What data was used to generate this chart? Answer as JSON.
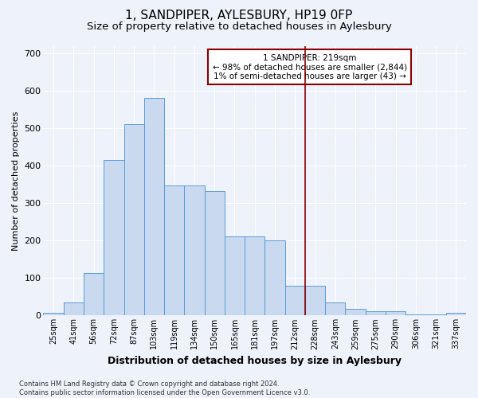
{
  "title": "1, SANDPIPER, AYLESBURY, HP19 0FP",
  "subtitle": "Size of property relative to detached houses in Aylesbury",
  "xlabel": "Distribution of detached houses by size in Aylesbury",
  "ylabel": "Number of detached properties",
  "categories": [
    "25sqm",
    "41sqm",
    "56sqm",
    "72sqm",
    "87sqm",
    "103sqm",
    "119sqm",
    "134sqm",
    "150sqm",
    "165sqm",
    "181sqm",
    "197sqm",
    "212sqm",
    "228sqm",
    "243sqm",
    "259sqm",
    "275sqm",
    "290sqm",
    "306sqm",
    "321sqm",
    "337sqm"
  ],
  "values": [
    8,
    35,
    113,
    415,
    510,
    580,
    347,
    347,
    333,
    212,
    212,
    200,
    80,
    80,
    35,
    18,
    12,
    12,
    4,
    4,
    8
  ],
  "bar_color": "#c9d9ef",
  "bar_edge_color": "#5b9bd5",
  "vline_x": 12.5,
  "vline_color": "#8b0000",
  "annotation_text": "1 SANDPIPER: 219sqm\n← 98% of detached houses are smaller (2,844)\n1% of semi-detached houses are larger (43) →",
  "annotation_box_color": "#8b0000",
  "ylim": [
    0,
    720
  ],
  "yticks": [
    0,
    100,
    200,
    300,
    400,
    500,
    600,
    700
  ],
  "footnote": "Contains HM Land Registry data © Crown copyright and database right 2024.\nContains public sector information licensed under the Open Government Licence v3.0.",
  "background_color": "#eef2fb",
  "grid_color": "#ffffff",
  "title_fontsize": 11,
  "subtitle_fontsize": 9.5,
  "xlabel_fontsize": 9,
  "ylabel_fontsize": 8,
  "tick_fontsize": 7,
  "annotation_fontsize": 7.5,
  "footnote_fontsize": 6
}
